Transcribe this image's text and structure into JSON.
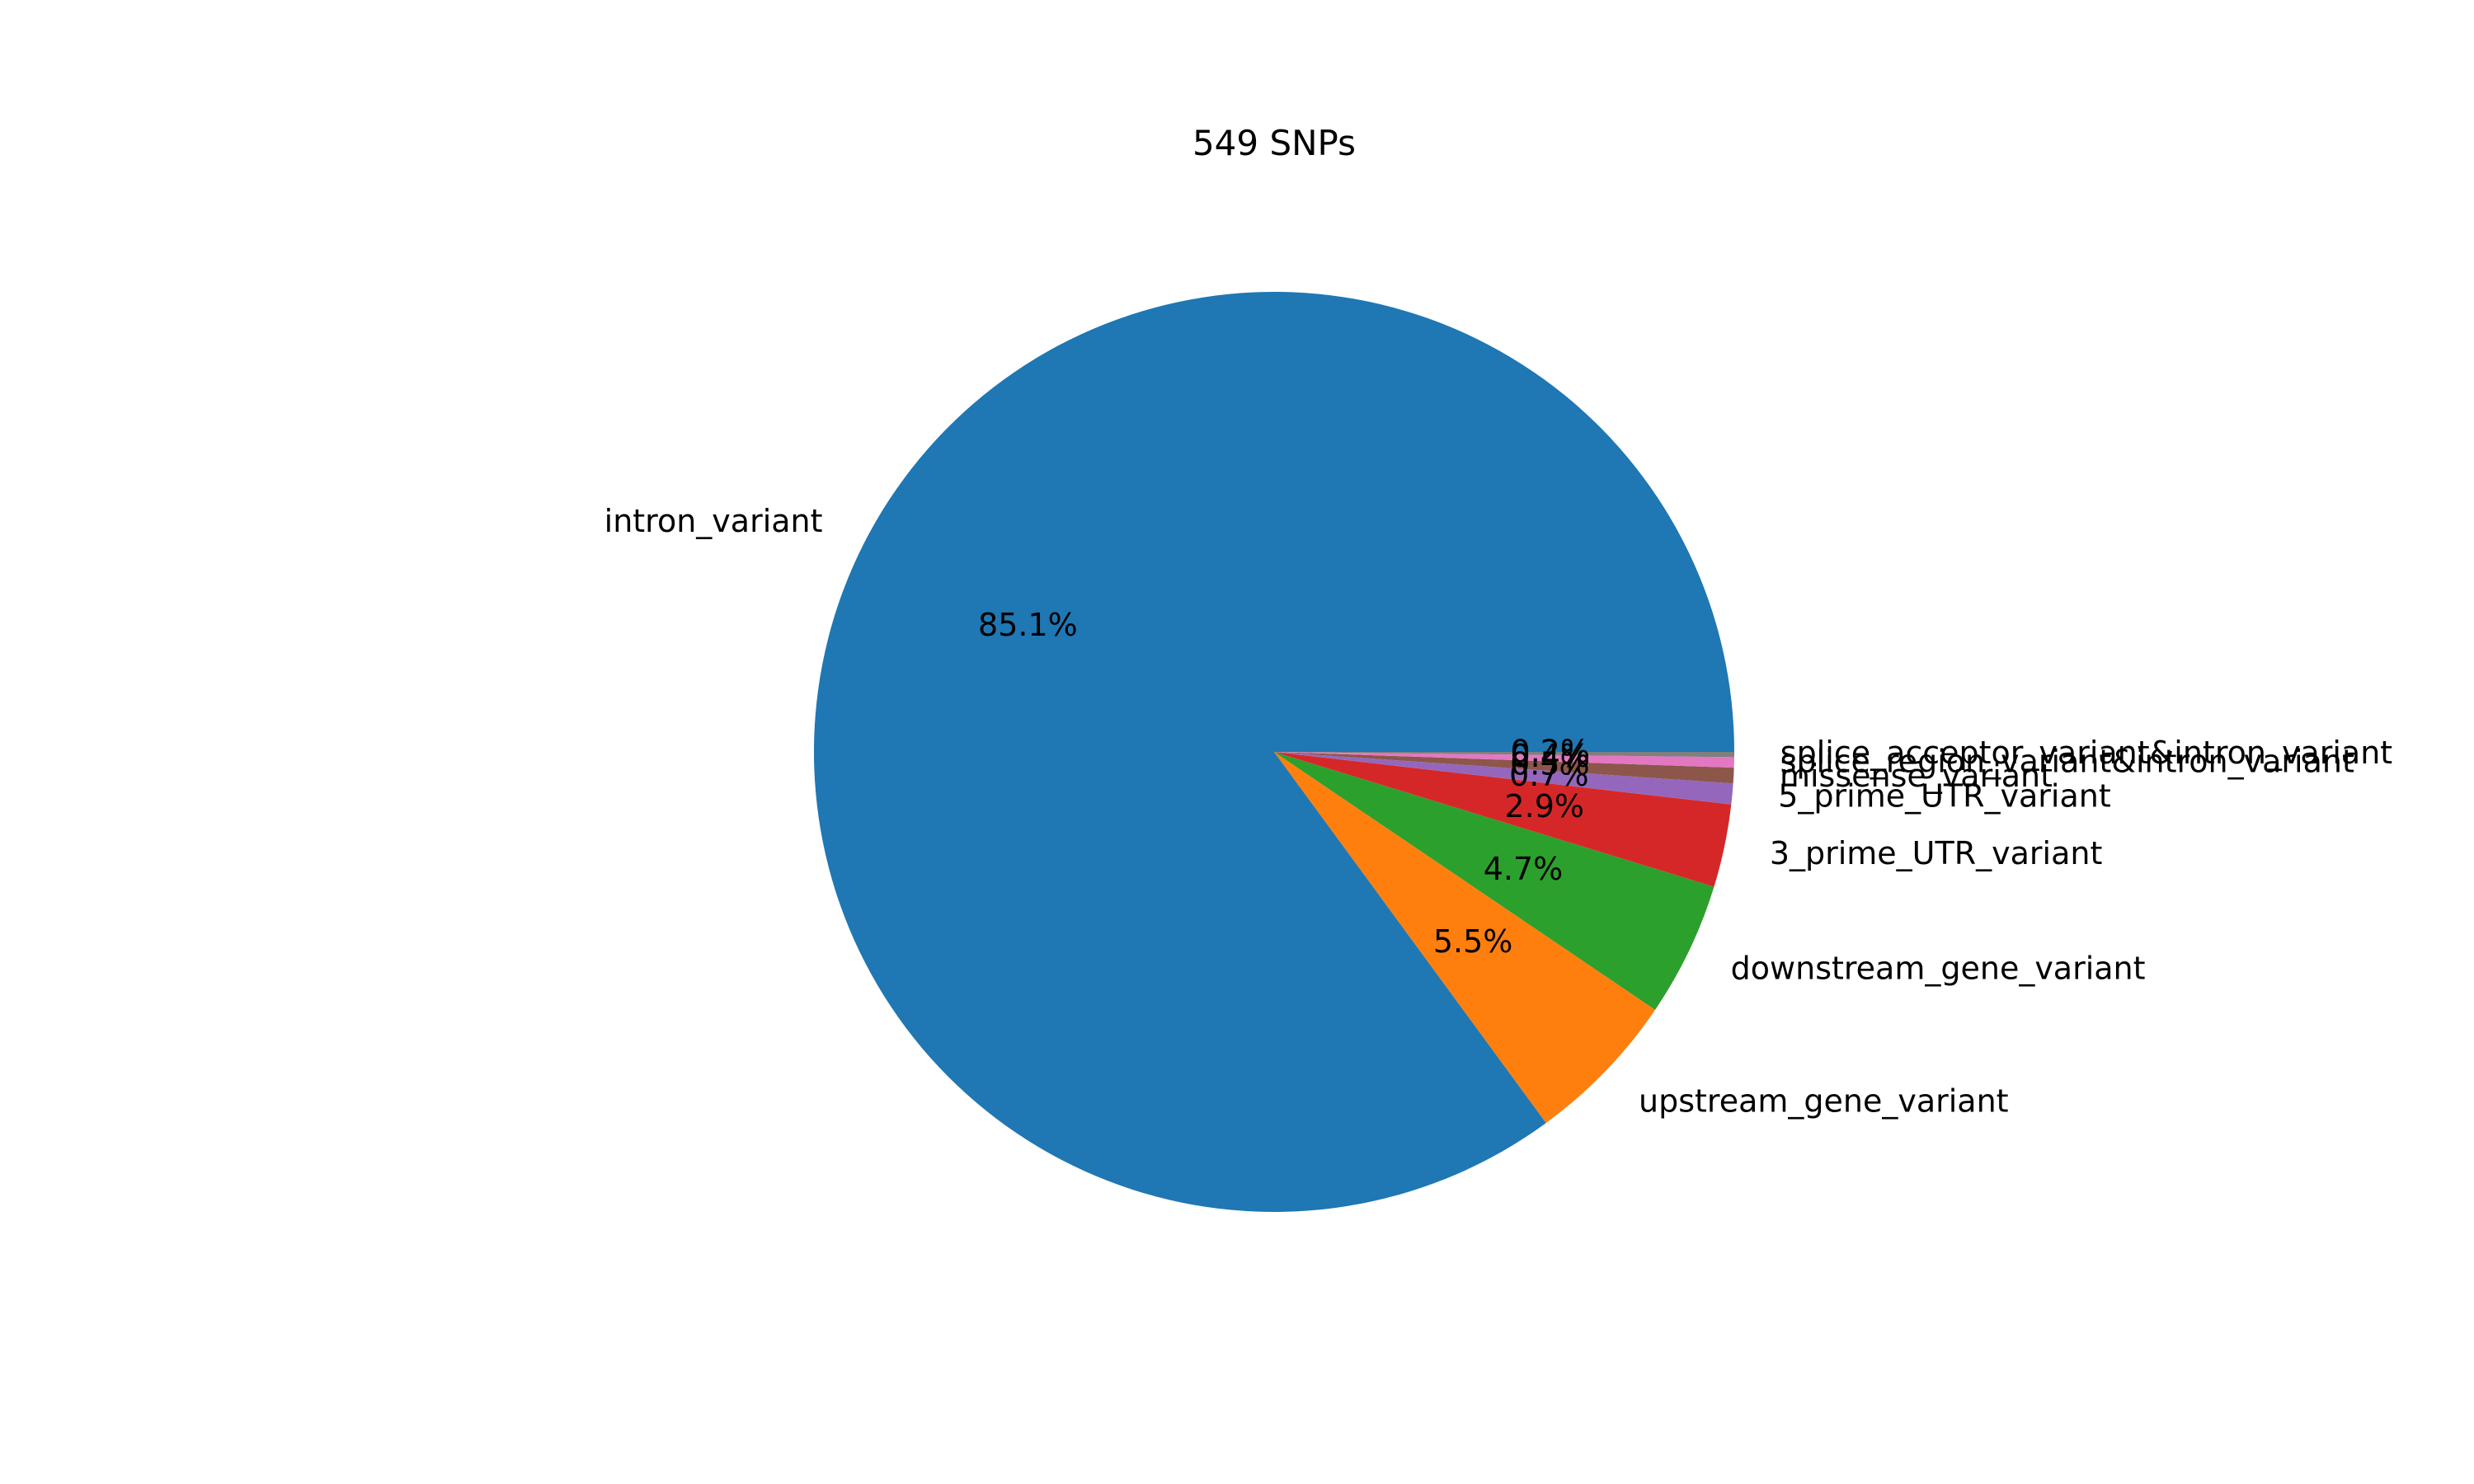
{
  "chart_data": {
    "type": "pie",
    "title": "549 SNPs",
    "start_angle_deg": 0,
    "direction": "counterclockwise",
    "slices": [
      {
        "label": "intron_variant",
        "count": 467,
        "pct_label": "85.1%",
        "color": "#1f77b4"
      },
      {
        "label": "upstream_gene_variant",
        "count": 30,
        "pct_label": "5.5%",
        "color": "#ff7f0e"
      },
      {
        "label": "downstream_gene_variant",
        "count": 26,
        "pct_label": "4.7%",
        "color": "#2ca02c"
      },
      {
        "label": "3_prime_UTR_variant",
        "count": 16,
        "pct_label": "2.9%",
        "color": "#d62728"
      },
      {
        "label": "5_prime_UTR_variant",
        "count": 4,
        "pct_label": "0.7%",
        "color": "#9467bd"
      },
      {
        "label": "missense_variant",
        "count": 3,
        "pct_label": "0.5%",
        "color": "#8c564b"
      },
      {
        "label": "splice_region_variant&intron_variant",
        "count": 2,
        "pct_label": "0.4%",
        "color": "#e377c2"
      },
      {
        "label": "splice_acceptor_variant&intron_variant",
        "count": 1,
        "pct_label": "0.2%",
        "color": "#7f7f7f"
      }
    ]
  }
}
